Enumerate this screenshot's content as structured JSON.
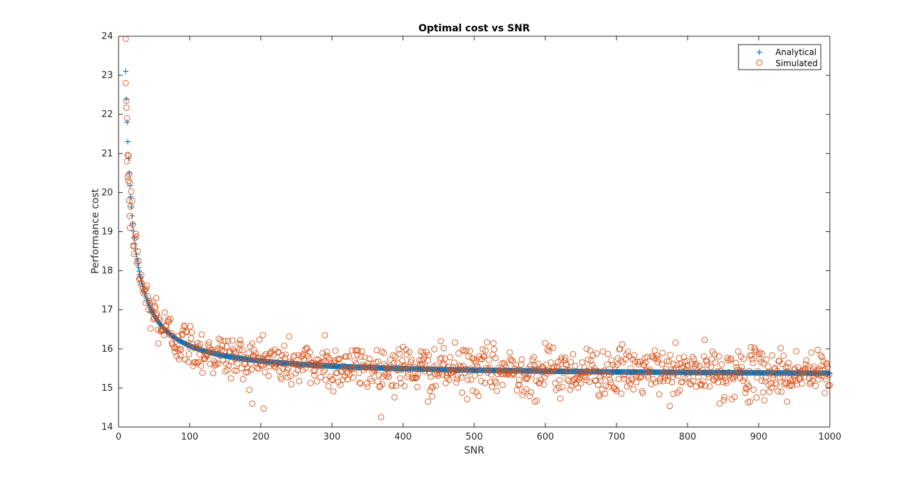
{
  "chart_data": {
    "type": "scatter",
    "title": "Optimal cost vs SNR",
    "xlabel": "SNR",
    "ylabel": "Performance cost",
    "xlim": [
      0,
      1000
    ],
    "ylim": [
      14,
      24
    ],
    "xticks": [
      0,
      100,
      200,
      300,
      400,
      500,
      600,
      700,
      800,
      900,
      1000
    ],
    "yticks": [
      14,
      15,
      16,
      17,
      18,
      19,
      20,
      21,
      22,
      23,
      24
    ],
    "grid": false,
    "legend_position": "top-right",
    "series": [
      {
        "name": "Analytical",
        "marker": "plus",
        "color": "#0072BD",
        "model": "15.3 + 78/x",
        "x_range": [
          10,
          1000
        ],
        "x_step": 1,
        "sample_points": [
          {
            "x": 10,
            "y": 23.1
          },
          {
            "x": 11,
            "y": 22.2
          },
          {
            "x": 12,
            "y": 21.4
          },
          {
            "x": 15,
            "y": 20.5
          },
          {
            "x": 20,
            "y": 19.2
          },
          {
            "x": 30,
            "y": 17.9
          },
          {
            "x": 50,
            "y": 16.9
          },
          {
            "x": 100,
            "y": 16.1
          },
          {
            "x": 200,
            "y": 15.7
          },
          {
            "x": 400,
            "y": 15.5
          },
          {
            "x": 600,
            "y": 15.43
          },
          {
            "x": 800,
            "y": 15.4
          },
          {
            "x": 1000,
            "y": 15.38
          }
        ]
      },
      {
        "name": "Simulated",
        "marker": "circle",
        "color": "#D95319",
        "model": "15.3 + 78/x + noise",
        "noise_std": 0.3,
        "x_range": [
          10,
          1000
        ],
        "x_step": 1,
        "highlighted_points": [
          {
            "x": 10,
            "y": 22.8
          },
          {
            "x": 11,
            "y": 22.35
          },
          {
            "x": 12,
            "y": 20.8
          },
          {
            "x": 13,
            "y": 20.4
          },
          {
            "x": 14,
            "y": 20.3
          },
          {
            "x": 15,
            "y": 19.8
          },
          {
            "x": 16,
            "y": 19.4
          },
          {
            "x": 16,
            "y": 19.1
          },
          {
            "x": 21,
            "y": 18.65
          },
          {
            "x": 53,
            "y": 17.3
          },
          {
            "x": 203,
            "y": 16.35
          },
          {
            "x": 290,
            "y": 16.35
          },
          {
            "x": 400,
            "y": 16.05
          },
          {
            "x": 600,
            "y": 16.15
          },
          {
            "x": 658,
            "y": 16.0
          },
          {
            "x": 188,
            "y": 14.6
          },
          {
            "x": 435,
            "y": 14.65
          },
          {
            "x": 585,
            "y": 14.65
          },
          {
            "x": 780,
            "y": 14.85
          },
          {
            "x": 845,
            "y": 14.6
          },
          {
            "x": 888,
            "y": 14.65
          },
          {
            "x": 940,
            "y": 14.65
          }
        ]
      }
    ]
  }
}
